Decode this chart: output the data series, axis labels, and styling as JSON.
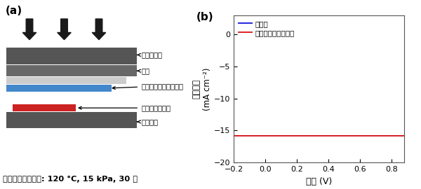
{
  "panel_a_label": "(a)",
  "panel_b_label": "(b)",
  "heater_label": "ヒーター板",
  "fabric_label": "布地",
  "film_label": "ホットメルトフィルム",
  "solar_label": "超薄型太陽電池",
  "stage_label": "ステージ",
  "condition_text": "ホットメルト条件: 120 °C, 15 kPa, 30 秒",
  "legend_before": "接着前",
  "legend_after": "ホットメルト接着後",
  "xlabel": "電圧 (V)",
  "ylabel_top": "電流密度",
  "ylabel_bot": "(mA cm⁻²)",
  "xlim": [
    -0.2,
    0.88
  ],
  "ylim": [
    -20,
    3
  ],
  "yticks": [
    0,
    -5,
    -10,
    -15,
    -20
  ],
  "xticks": [
    -0.2,
    0,
    0.2,
    0.4,
    0.6,
    0.8
  ],
  "color_before": "#2222DD",
  "color_after": "#DD2222",
  "color_heater": "#555555",
  "color_fabric": "#686868",
  "color_film_light": "#cccccc",
  "color_film_blue": "#4488cc",
  "color_solar": "#cc2222",
  "color_stage": "#555555",
  "color_arrow": "#1a1a1a"
}
